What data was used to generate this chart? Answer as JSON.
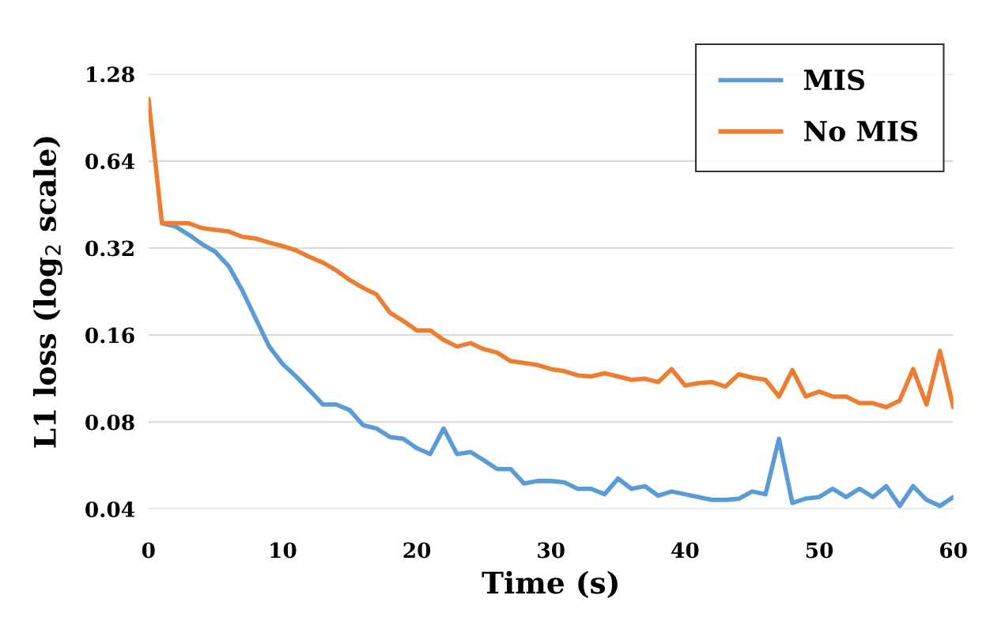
{
  "chart_data": {
    "type": "line",
    "xlabel": "Time (s)",
    "ylabel": "L1 loss (log$_{2}$ scale)",
    "x": [
      0,
      1,
      2,
      3,
      4,
      5,
      6,
      7,
      8,
      9,
      10,
      11,
      12,
      13,
      14,
      15,
      16,
      17,
      18,
      19,
      20,
      21,
      22,
      23,
      24,
      25,
      26,
      27,
      28,
      29,
      30,
      31,
      32,
      33,
      34,
      35,
      36,
      37,
      38,
      39,
      40,
      41,
      42,
      43,
      44,
      45,
      46,
      47,
      48,
      49,
      50,
      51,
      52,
      53,
      54,
      55,
      56,
      57,
      58,
      59,
      60
    ],
    "series": [
      {
        "name": "MIS",
        "color": "#5b9bd5",
        "values": [
          null,
          0.39,
          0.38,
          0.356,
          0.33,
          0.31,
          0.276,
          0.228,
          0.182,
          0.146,
          0.127,
          0.115,
          0.103,
          0.092,
          0.092,
          0.088,
          0.078,
          0.076,
          0.071,
          0.07,
          0.065,
          0.062,
          0.076,
          0.062,
          0.063,
          0.059,
          0.055,
          0.055,
          0.049,
          0.05,
          0.05,
          0.0495,
          0.047,
          0.047,
          0.045,
          0.051,
          0.047,
          0.048,
          0.0445,
          0.046,
          0.045,
          0.044,
          0.043,
          0.043,
          0.0434,
          0.046,
          0.045,
          0.07,
          0.042,
          0.0435,
          0.044,
          0.047,
          0.044,
          0.047,
          0.044,
          0.048,
          0.041,
          0.048,
          0.043,
          0.041,
          0.044
        ]
      },
      {
        "name": "No MIS",
        "color": "#ed7d31",
        "values": [
          1.05,
          0.39,
          0.39,
          0.39,
          0.375,
          0.37,
          0.365,
          0.35,
          0.345,
          0.334,
          0.325,
          0.314,
          0.298,
          0.285,
          0.268,
          0.248,
          0.233,
          0.221,
          0.191,
          0.179,
          0.166,
          0.166,
          0.154,
          0.146,
          0.15,
          0.143,
          0.139,
          0.13,
          0.128,
          0.126,
          0.122,
          0.12,
          0.116,
          0.115,
          0.118,
          0.115,
          0.112,
          0.113,
          0.11,
          0.122,
          0.107,
          0.109,
          0.11,
          0.106,
          0.117,
          0.114,
          0.112,
          0.098,
          0.121,
          0.098,
          0.102,
          0.098,
          0.098,
          0.093,
          0.093,
          0.09,
          0.095,
          0.122,
          0.092,
          0.141,
          0.09
        ]
      }
    ],
    "log": "y",
    "xlim": [
      0,
      60
    ],
    "xticks": [
      0,
      10,
      20,
      30,
      40,
      50,
      60
    ],
    "ylim": [
      0.04,
      1.28
    ],
    "yticks": [
      0.04,
      0.08,
      0.16,
      0.32,
      0.64,
      1.28
    ],
    "grid": "y",
    "legend": "top right",
    "line_style": "solid",
    "marker": "none"
  }
}
